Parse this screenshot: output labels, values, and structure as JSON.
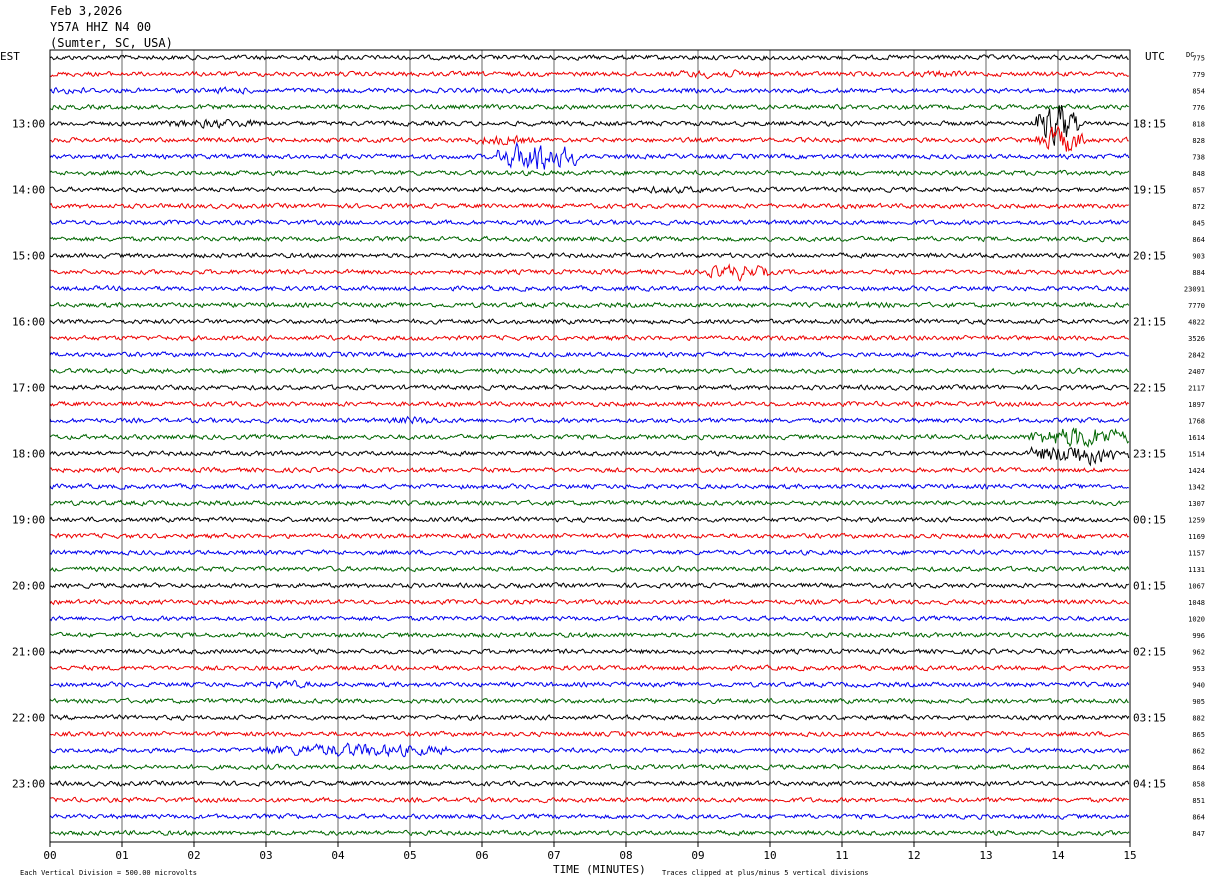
{
  "header": {
    "date": "Feb 3,2026",
    "station": "Y57A HHZ N4 00",
    "location": "(Sumter, SC, USA)"
  },
  "labels": {
    "left_tz": "EST",
    "right_tz": "UTC",
    "dc": "DC",
    "xlabel": "TIME (MINUTES)",
    "scale_note": "Each Vertical Division =  500.00 microvolts",
    "clip_note": "Traces clipped at plus/minus 5 vertical divisions"
  },
  "colors": {
    "cycle": [
      "#000000",
      "#ee0000",
      "#0000ee",
      "#006600"
    ],
    "grid": "#000000"
  },
  "chart_data": {
    "type": "line",
    "title": "",
    "xlabel": "TIME (MINUTES)",
    "ylabel": "",
    "x_range": [
      0,
      15
    ],
    "x_ticks": [
      "00",
      "01",
      "02",
      "03",
      "04",
      "05",
      "06",
      "07",
      "08",
      "09",
      "10",
      "11",
      "12",
      "13",
      "14",
      "15"
    ],
    "traces_count": 48,
    "minutes_per_trace": 15,
    "trace_color_cycle": [
      "black",
      "red",
      "blue",
      "green"
    ],
    "left_time_labels": [
      {
        "trace": 4,
        "label": "13:00"
      },
      {
        "trace": 8,
        "label": "14:00"
      },
      {
        "trace": 12,
        "label": "15:00"
      },
      {
        "trace": 16,
        "label": "16:00"
      },
      {
        "trace": 20,
        "label": "17:00"
      },
      {
        "trace": 24,
        "label": "18:00"
      },
      {
        "trace": 28,
        "label": "19:00"
      },
      {
        "trace": 32,
        "label": "20:00"
      },
      {
        "trace": 36,
        "label": "21:00"
      },
      {
        "trace": 40,
        "label": "22:00"
      },
      {
        "trace": 44,
        "label": "23:00"
      }
    ],
    "right_time_labels": [
      {
        "trace": 4,
        "label": "18:15"
      },
      {
        "trace": 8,
        "label": "19:15"
      },
      {
        "trace": 12,
        "label": "20:15"
      },
      {
        "trace": 16,
        "label": "21:15"
      },
      {
        "trace": 20,
        "label": "22:15"
      },
      {
        "trace": 24,
        "label": "23:15"
      },
      {
        "trace": 28,
        "label": "00:15"
      },
      {
        "trace": 32,
        "label": "01:15"
      },
      {
        "trace": 36,
        "label": "02:15"
      },
      {
        "trace": 40,
        "label": "03:15"
      },
      {
        "trace": 44,
        "label": "04:15"
      }
    ],
    "dc_offsets": [
      "775",
      "779",
      "854",
      "776",
      "818",
      "828",
      "738",
      "848",
      "857",
      "872",
      "845",
      "864",
      "903",
      "884",
      "23091",
      "7770",
      "4822",
      "3526",
      "2842",
      "2407",
      "2117",
      "1897",
      "1768",
      "1614",
      "1514",
      "1424",
      "1342",
      "1307",
      "1259",
      "1169",
      "1157",
      "1131",
      "1067",
      "1048",
      "1020",
      "996",
      "962",
      "953",
      "940",
      "905",
      "882",
      "865",
      "862",
      "864",
      "858",
      "851",
      "864",
      "847"
    ],
    "events": [
      {
        "trace": 1,
        "start_min": 8.6,
        "end_min": 9.9,
        "amplitude": 1.8
      },
      {
        "trace": 1,
        "start_min": 12.1,
        "end_min": 12.7,
        "amplitude": 1.6
      },
      {
        "trace": 2,
        "start_min": 0.0,
        "end_min": 0.6,
        "amplitude": 1.6
      },
      {
        "trace": 2,
        "start_min": 2.3,
        "end_min": 2.8,
        "amplitude": 1.6
      },
      {
        "trace": 4,
        "start_min": 1.6,
        "end_min": 3.0,
        "amplitude": 2.0
      },
      {
        "trace": 4,
        "start_min": 13.7,
        "end_min": 14.3,
        "amplitude": 10
      },
      {
        "trace": 5,
        "start_min": 5.8,
        "end_min": 6.7,
        "amplitude": 2.2
      },
      {
        "trace": 5,
        "start_min": 13.7,
        "end_min": 14.4,
        "amplitude": 6
      },
      {
        "trace": 6,
        "start_min": 6.2,
        "end_min": 7.3,
        "amplitude": 7
      },
      {
        "trace": 8,
        "start_min": 8.0,
        "end_min": 9.2,
        "amplitude": 1.6
      },
      {
        "trace": 13,
        "start_min": 9.1,
        "end_min": 10.0,
        "amplitude": 3.5
      },
      {
        "trace": 15,
        "start_min": 10.9,
        "end_min": 11.8,
        "amplitude": 1.4
      },
      {
        "trace": 22,
        "start_min": 4.7,
        "end_min": 5.4,
        "amplitude": 1.8
      },
      {
        "trace": 23,
        "start_min": 13.6,
        "end_min": 15.0,
        "amplitude": 5
      },
      {
        "trace": 24,
        "start_min": 13.6,
        "end_min": 15.0,
        "amplitude": 5
      },
      {
        "trace": 38,
        "start_min": 2.9,
        "end_min": 3.6,
        "amplitude": 1.8
      },
      {
        "trace": 42,
        "start_min": 2.9,
        "end_min": 5.5,
        "amplitude": 3
      }
    ]
  }
}
